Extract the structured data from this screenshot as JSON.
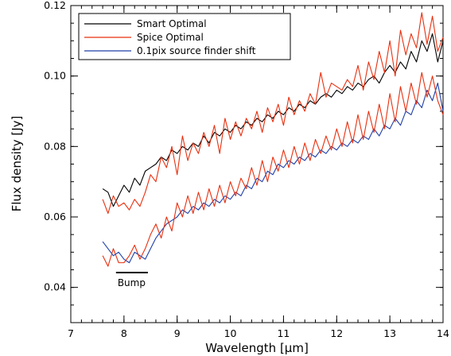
{
  "chart_data": {
    "type": "line",
    "xlabel": "Wavelength [μm]",
    "ylabel": "Flux density [Jy]",
    "xlim": [
      7,
      14
    ],
    "ylim": [
      0.03,
      0.12
    ],
    "x_ticks": [
      7,
      8,
      9,
      10,
      11,
      12,
      13,
      14
    ],
    "y_ticks": [
      0.04,
      0.06,
      0.08,
      0.1,
      0.12
    ],
    "y_tick_labels": [
      "0.04",
      "0.06",
      "0.08",
      "0.10",
      "0.12"
    ],
    "legend": {
      "placement": "top-left",
      "entries": [
        {
          "label": "Smart Optimal",
          "color": "#000000"
        },
        {
          "label": "Spice Optimal",
          "color": "#e8300f"
        },
        {
          "label": "0.1pix source finder shift",
          "color": "#1f3fa8"
        }
      ]
    },
    "annotation": {
      "text": "Bump",
      "x_start": 7.85,
      "x_end": 8.45,
      "y": 0.0442
    },
    "series": [
      {
        "name": "Smart Optimal",
        "color": "#000000",
        "x": [
          7.6,
          7.7,
          7.8,
          7.9,
          8.0,
          8.1,
          8.2,
          8.3,
          8.4,
          8.5,
          8.6,
          8.7,
          8.8,
          8.9,
          9.0,
          9.1,
          9.2,
          9.3,
          9.4,
          9.5,
          9.6,
          9.7,
          9.8,
          9.9,
          10.0,
          10.1,
          10.2,
          10.3,
          10.4,
          10.5,
          10.6,
          10.7,
          10.8,
          10.9,
          11.0,
          11.1,
          11.2,
          11.3,
          11.4,
          11.5,
          11.6,
          11.7,
          11.8,
          11.9,
          12.0,
          12.1,
          12.2,
          12.3,
          12.4,
          12.5,
          12.6,
          12.7,
          12.8,
          12.9,
          13.0,
          13.1,
          13.2,
          13.3,
          13.4,
          13.5,
          13.6,
          13.7,
          13.8,
          13.9,
          14.0
        ],
        "y": [
          0.068,
          0.067,
          0.063,
          0.066,
          0.069,
          0.067,
          0.071,
          0.069,
          0.073,
          0.074,
          0.075,
          0.077,
          0.076,
          0.079,
          0.078,
          0.08,
          0.079,
          0.081,
          0.08,
          0.083,
          0.081,
          0.084,
          0.083,
          0.085,
          0.084,
          0.086,
          0.085,
          0.087,
          0.086,
          0.088,
          0.087,
          0.089,
          0.088,
          0.09,
          0.089,
          0.091,
          0.09,
          0.092,
          0.091,
          0.093,
          0.092,
          0.094,
          0.095,
          0.094,
          0.096,
          0.095,
          0.097,
          0.096,
          0.098,
          0.097,
          0.099,
          0.1,
          0.098,
          0.101,
          0.103,
          0.101,
          0.104,
          0.102,
          0.107,
          0.104,
          0.11,
          0.107,
          0.112,
          0.104,
          0.11
        ]
      },
      {
        "name": "Spice Optimal",
        "color": "#e8300f",
        "x": [
          7.6,
          7.7,
          7.8,
          7.9,
          8.0,
          8.1,
          8.2,
          8.3,
          8.4,
          8.5,
          8.6,
          8.7,
          8.8,
          8.9,
          9.0,
          9.1,
          9.2,
          9.3,
          9.4,
          9.5,
          9.6,
          9.7,
          9.8,
          9.9,
          10.0,
          10.1,
          10.2,
          10.3,
          10.4,
          10.5,
          10.6,
          10.7,
          10.8,
          10.9,
          11.0,
          11.1,
          11.2,
          11.3,
          11.4,
          11.5,
          11.6,
          11.7,
          11.8,
          11.9,
          12.0,
          12.1,
          12.2,
          12.3,
          12.4,
          12.5,
          12.6,
          12.7,
          12.8,
          12.9,
          13.0,
          13.1,
          13.2,
          13.3,
          13.4,
          13.5,
          13.6,
          13.7,
          13.8,
          13.9,
          14.0
        ],
        "y": [
          0.065,
          0.061,
          0.066,
          0.063,
          0.064,
          0.062,
          0.065,
          0.063,
          0.067,
          0.072,
          0.07,
          0.077,
          0.074,
          0.08,
          0.072,
          0.083,
          0.076,
          0.081,
          0.078,
          0.084,
          0.08,
          0.086,
          0.078,
          0.088,
          0.082,
          0.087,
          0.083,
          0.088,
          0.085,
          0.09,
          0.084,
          0.091,
          0.087,
          0.092,
          0.086,
          0.094,
          0.089,
          0.093,
          0.09,
          0.095,
          0.092,
          0.101,
          0.094,
          0.098,
          0.097,
          0.096,
          0.099,
          0.097,
          0.103,
          0.096,
          0.104,
          0.099,
          0.107,
          0.101,
          0.11,
          0.1,
          0.113,
          0.106,
          0.112,
          0.108,
          0.118,
          0.109,
          0.117,
          0.107,
          0.111
        ]
      },
      {
        "name": "0.1pix source finder shift",
        "color": "#1f3fa8",
        "x": [
          7.6,
          7.7,
          7.8,
          7.9,
          8.0,
          8.1,
          8.2,
          8.3,
          8.4,
          8.5,
          8.6,
          8.7,
          8.8,
          8.9,
          9.0,
          9.1,
          9.2,
          9.3,
          9.4,
          9.5,
          9.6,
          9.7,
          9.8,
          9.9,
          10.0,
          10.1,
          10.2,
          10.3,
          10.4,
          10.5,
          10.6,
          10.7,
          10.8,
          10.9,
          11.0,
          11.1,
          11.2,
          11.3,
          11.4,
          11.5,
          11.6,
          11.7,
          11.8,
          11.9,
          12.0,
          12.1,
          12.2,
          12.3,
          12.4,
          12.5,
          12.6,
          12.7,
          12.8,
          12.9,
          13.0,
          13.1,
          13.2,
          13.3,
          13.4,
          13.5,
          13.6,
          13.7,
          13.8,
          13.9,
          14.0
        ],
        "y": [
          0.053,
          0.051,
          0.049,
          0.05,
          0.048,
          0.047,
          0.05,
          0.049,
          0.048,
          0.051,
          0.054,
          0.056,
          0.058,
          0.059,
          0.06,
          0.062,
          0.061,
          0.063,
          0.062,
          0.064,
          0.063,
          0.065,
          0.064,
          0.066,
          0.065,
          0.067,
          0.066,
          0.069,
          0.068,
          0.071,
          0.07,
          0.073,
          0.072,
          0.075,
          0.074,
          0.076,
          0.075,
          0.077,
          0.076,
          0.078,
          0.077,
          0.079,
          0.078,
          0.08,
          0.079,
          0.081,
          0.08,
          0.082,
          0.081,
          0.083,
          0.082,
          0.085,
          0.083,
          0.086,
          0.085,
          0.088,
          0.086,
          0.09,
          0.089,
          0.093,
          0.091,
          0.096,
          0.093,
          0.098,
          0.09
        ]
      },
      {
        "name": "Spice Optimal",
        "color": "#e8300f",
        "x": [
          7.6,
          7.7,
          7.8,
          7.9,
          8.0,
          8.1,
          8.2,
          8.3,
          8.4,
          8.5,
          8.6,
          8.7,
          8.8,
          8.9,
          9.0,
          9.1,
          9.2,
          9.3,
          9.4,
          9.5,
          9.6,
          9.7,
          9.8,
          9.9,
          10.0,
          10.1,
          10.2,
          10.3,
          10.4,
          10.5,
          10.6,
          10.7,
          10.8,
          10.9,
          11.0,
          11.1,
          11.2,
          11.3,
          11.4,
          11.5,
          11.6,
          11.7,
          11.8,
          11.9,
          12.0,
          12.1,
          12.2,
          12.3,
          12.4,
          12.5,
          12.6,
          12.7,
          12.8,
          12.9,
          13.0,
          13.1,
          13.2,
          13.3,
          13.4,
          13.5,
          13.6,
          13.7,
          13.8,
          13.9,
          14.0
        ],
        "y": [
          0.049,
          0.046,
          0.051,
          0.047,
          0.047,
          0.049,
          0.052,
          0.048,
          0.051,
          0.055,
          0.058,
          0.054,
          0.06,
          0.056,
          0.064,
          0.06,
          0.066,
          0.061,
          0.067,
          0.062,
          0.068,
          0.063,
          0.069,
          0.064,
          0.07,
          0.066,
          0.071,
          0.068,
          0.074,
          0.069,
          0.076,
          0.07,
          0.077,
          0.073,
          0.079,
          0.074,
          0.08,
          0.075,
          0.081,
          0.076,
          0.082,
          0.078,
          0.083,
          0.079,
          0.085,
          0.08,
          0.087,
          0.081,
          0.089,
          0.082,
          0.09,
          0.084,
          0.092,
          0.085,
          0.095,
          0.087,
          0.097,
          0.09,
          0.098,
          0.092,
          0.101,
          0.094,
          0.1,
          0.093,
          0.089
        ]
      }
    ]
  }
}
